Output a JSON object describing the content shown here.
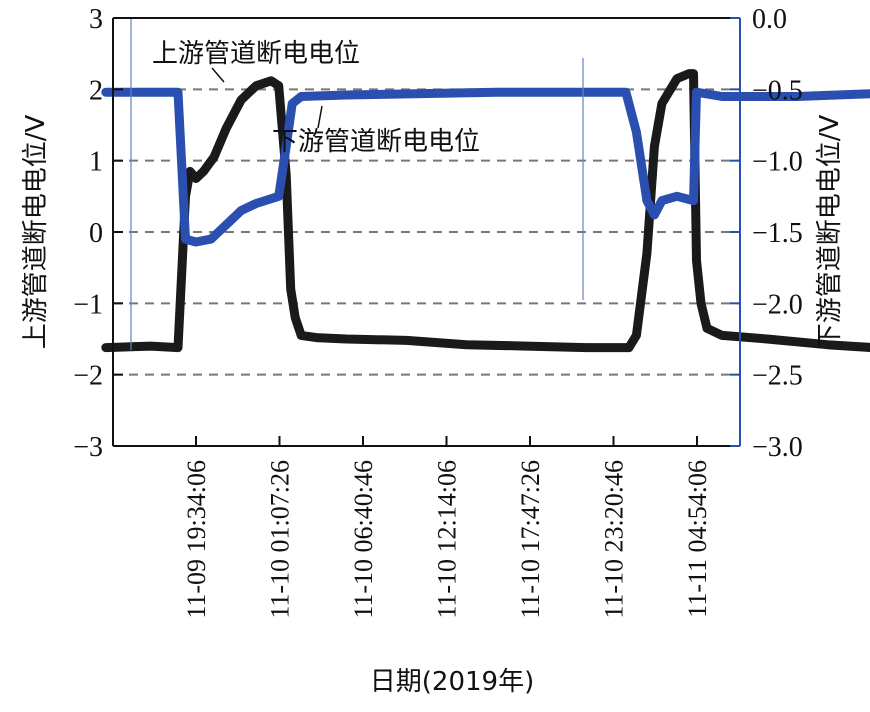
{
  "chart_data": {
    "type": "line",
    "title": "",
    "xlabel": "日期(2019年)",
    "ylabel_left": "上游管道断电电位/V",
    "ylabel_right": "下游管道断电电位/V",
    "ylim_left": [
      -3,
      3
    ],
    "ylim_right": [
      -3.0,
      0.0
    ],
    "yticks_left": [
      "3",
      "2",
      "1",
      "0",
      "−1",
      "−2",
      "−3"
    ],
    "yticks_right": [
      "0.0",
      "−0.5",
      "−1.0",
      "−1.5",
      "−2.0",
      "−2.5",
      "−3.0"
    ],
    "xticks": [
      "11-09 19:34:06",
      "11-10 01:07:26",
      "11-10 06:40:46",
      "11-10 12:14:06",
      "11-10 17:47:26",
      "11-10 23:20:46",
      "11-11 04:54:06"
    ],
    "grid": "dashed horizontal",
    "annotations": [
      {
        "text": "上游管道断电电位",
        "series": "upstream"
      },
      {
        "text": "下游管道断电电位",
        "series": "downstream"
      }
    ],
    "series": [
      {
        "name": "上游管道断电电位",
        "axis": "left",
        "color": "#1a1a1a",
        "points": [
          [
            -6.0,
            -1.62
          ],
          [
            -3.0,
            -1.6
          ],
          [
            -1.2,
            -1.62
          ],
          [
            -0.7,
            0.5
          ],
          [
            -0.4,
            0.85
          ],
          [
            0.0,
            0.75
          ],
          [
            0.5,
            0.85
          ],
          [
            1.2,
            1.05
          ],
          [
            2.0,
            1.45
          ],
          [
            3.0,
            1.85
          ],
          [
            4.0,
            2.05
          ],
          [
            5.0,
            2.12
          ],
          [
            5.5,
            2.05
          ],
          [
            6.0,
            0.8
          ],
          [
            6.3,
            -0.8
          ],
          [
            6.6,
            -1.2
          ],
          [
            7.0,
            -1.45
          ],
          [
            8.0,
            -1.48
          ],
          [
            10.0,
            -1.5
          ],
          [
            14.0,
            -1.52
          ],
          [
            18.0,
            -1.58
          ],
          [
            22.0,
            -1.6
          ],
          [
            26.0,
            -1.62
          ],
          [
            28.8,
            -1.62
          ],
          [
            29.3,
            -1.45
          ],
          [
            30.0,
            -0.3
          ],
          [
            30.5,
            1.2
          ],
          [
            31.0,
            1.8
          ],
          [
            32.0,
            2.15
          ],
          [
            32.8,
            2.22
          ],
          [
            33.1,
            2.22
          ],
          [
            33.3,
            -0.4
          ],
          [
            33.6,
            -1.0
          ],
          [
            34.0,
            -1.35
          ],
          [
            35.0,
            -1.45
          ],
          [
            38.0,
            -1.5
          ],
          [
            42.0,
            -1.58
          ],
          [
            45.0,
            -1.62
          ],
          [
            47.0,
            -1.65
          ]
        ]
      },
      {
        "name": "下游管道断电电位",
        "axis": "right",
        "color": "#2a4fb0",
        "points": [
          [
            -6.0,
            -0.52
          ],
          [
            -1.2,
            -0.52
          ],
          [
            -0.7,
            -1.55
          ],
          [
            0.0,
            -1.57
          ],
          [
            1.0,
            -1.55
          ],
          [
            2.0,
            -1.45
          ],
          [
            3.0,
            -1.35
          ],
          [
            4.0,
            -1.3
          ],
          [
            5.5,
            -1.25
          ],
          [
            6.0,
            -0.9
          ],
          [
            6.4,
            -0.6
          ],
          [
            7.0,
            -0.55
          ],
          [
            10.0,
            -0.54
          ],
          [
            15.0,
            -0.53
          ],
          [
            20.0,
            -0.52
          ],
          [
            25.0,
            -0.52
          ],
          [
            28.6,
            -0.52
          ],
          [
            29.3,
            -0.8
          ],
          [
            30.0,
            -1.28
          ],
          [
            30.5,
            -1.38
          ],
          [
            31.0,
            -1.28
          ],
          [
            32.0,
            -1.25
          ],
          [
            33.1,
            -1.28
          ],
          [
            33.3,
            -0.52
          ],
          [
            35.0,
            -0.55
          ],
          [
            40.0,
            -0.55
          ],
          [
            45.0,
            -0.53
          ],
          [
            47.0,
            -0.52
          ]
        ]
      }
    ]
  }
}
